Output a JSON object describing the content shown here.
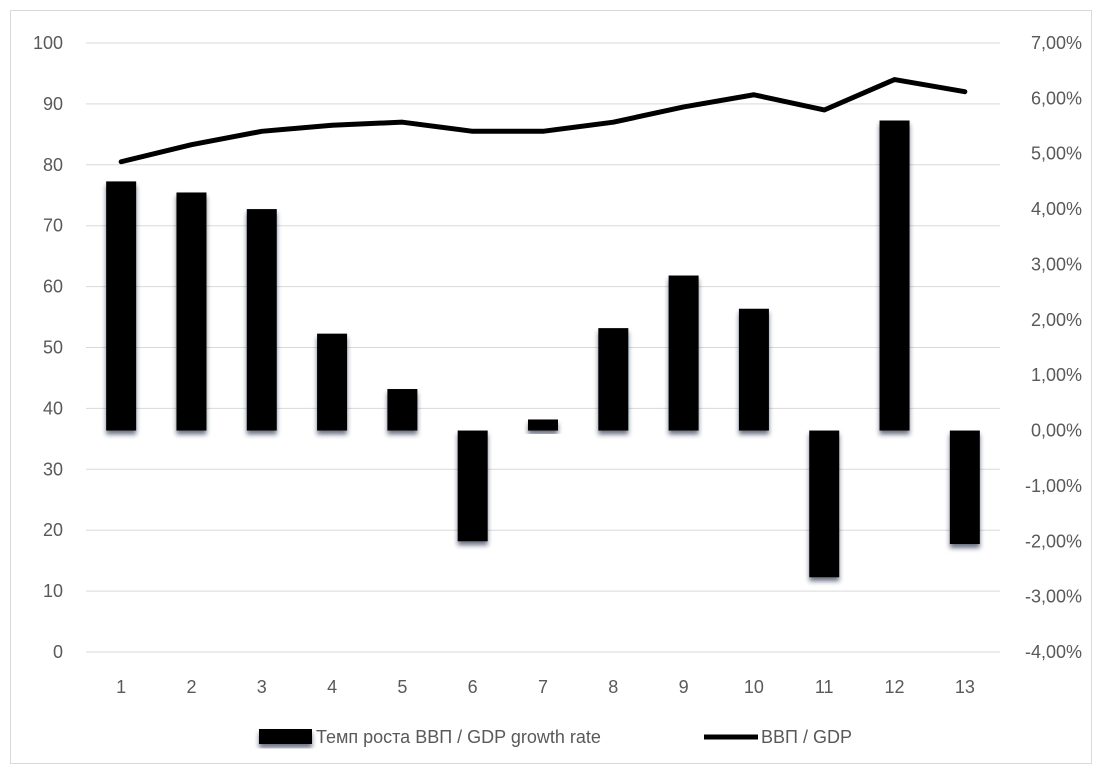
{
  "chart_data": {
    "type": "bar",
    "categories": [
      "1",
      "2",
      "3",
      "4",
      "5",
      "6",
      "7",
      "8",
      "9",
      "10",
      "11",
      "12",
      "13"
    ],
    "series": [
      {
        "name": "Темп роста ВВП / GDP growth rate",
        "type": "bar",
        "axis": "right",
        "values": [
          4.5,
          4.3,
          4.0,
          1.75,
          0.75,
          -2.0,
          0.2,
          1.85,
          2.8,
          2.2,
          -2.65,
          5.6,
          -2.05
        ],
        "color": "#000000"
      },
      {
        "name": "ВВП  / GDP",
        "type": "line",
        "axis": "left",
        "values": [
          80.5,
          83.3,
          85.5,
          86.5,
          87.0,
          85.5,
          85.5,
          87.0,
          89.5,
          91.5,
          89.0,
          94.0,
          92.0
        ],
        "color": "#000000"
      }
    ],
    "y_left": {
      "min": 0,
      "max": 100,
      "step": 10,
      "ticks": [
        "0",
        "10",
        "20",
        "30",
        "40",
        "50",
        "60",
        "70",
        "80",
        "90",
        "100"
      ]
    },
    "y_right": {
      "min": -4,
      "max": 7,
      "step": 1,
      "ticks": [
        "-4,00%",
        "-3,00%",
        "-2,00%",
        "-1,00%",
        "0,00%",
        "1,00%",
        "2,00%",
        "3,00%",
        "4,00%",
        "5,00%",
        "6,00%",
        "7,00%"
      ]
    },
    "grid": true,
    "legend_position": "bottom",
    "title": "",
    "xlabel": "",
    "ylabel": ""
  },
  "colors": {
    "gridline": "#d9d9d9",
    "text": "#595959",
    "bar_shadow": "#1f2a44"
  }
}
